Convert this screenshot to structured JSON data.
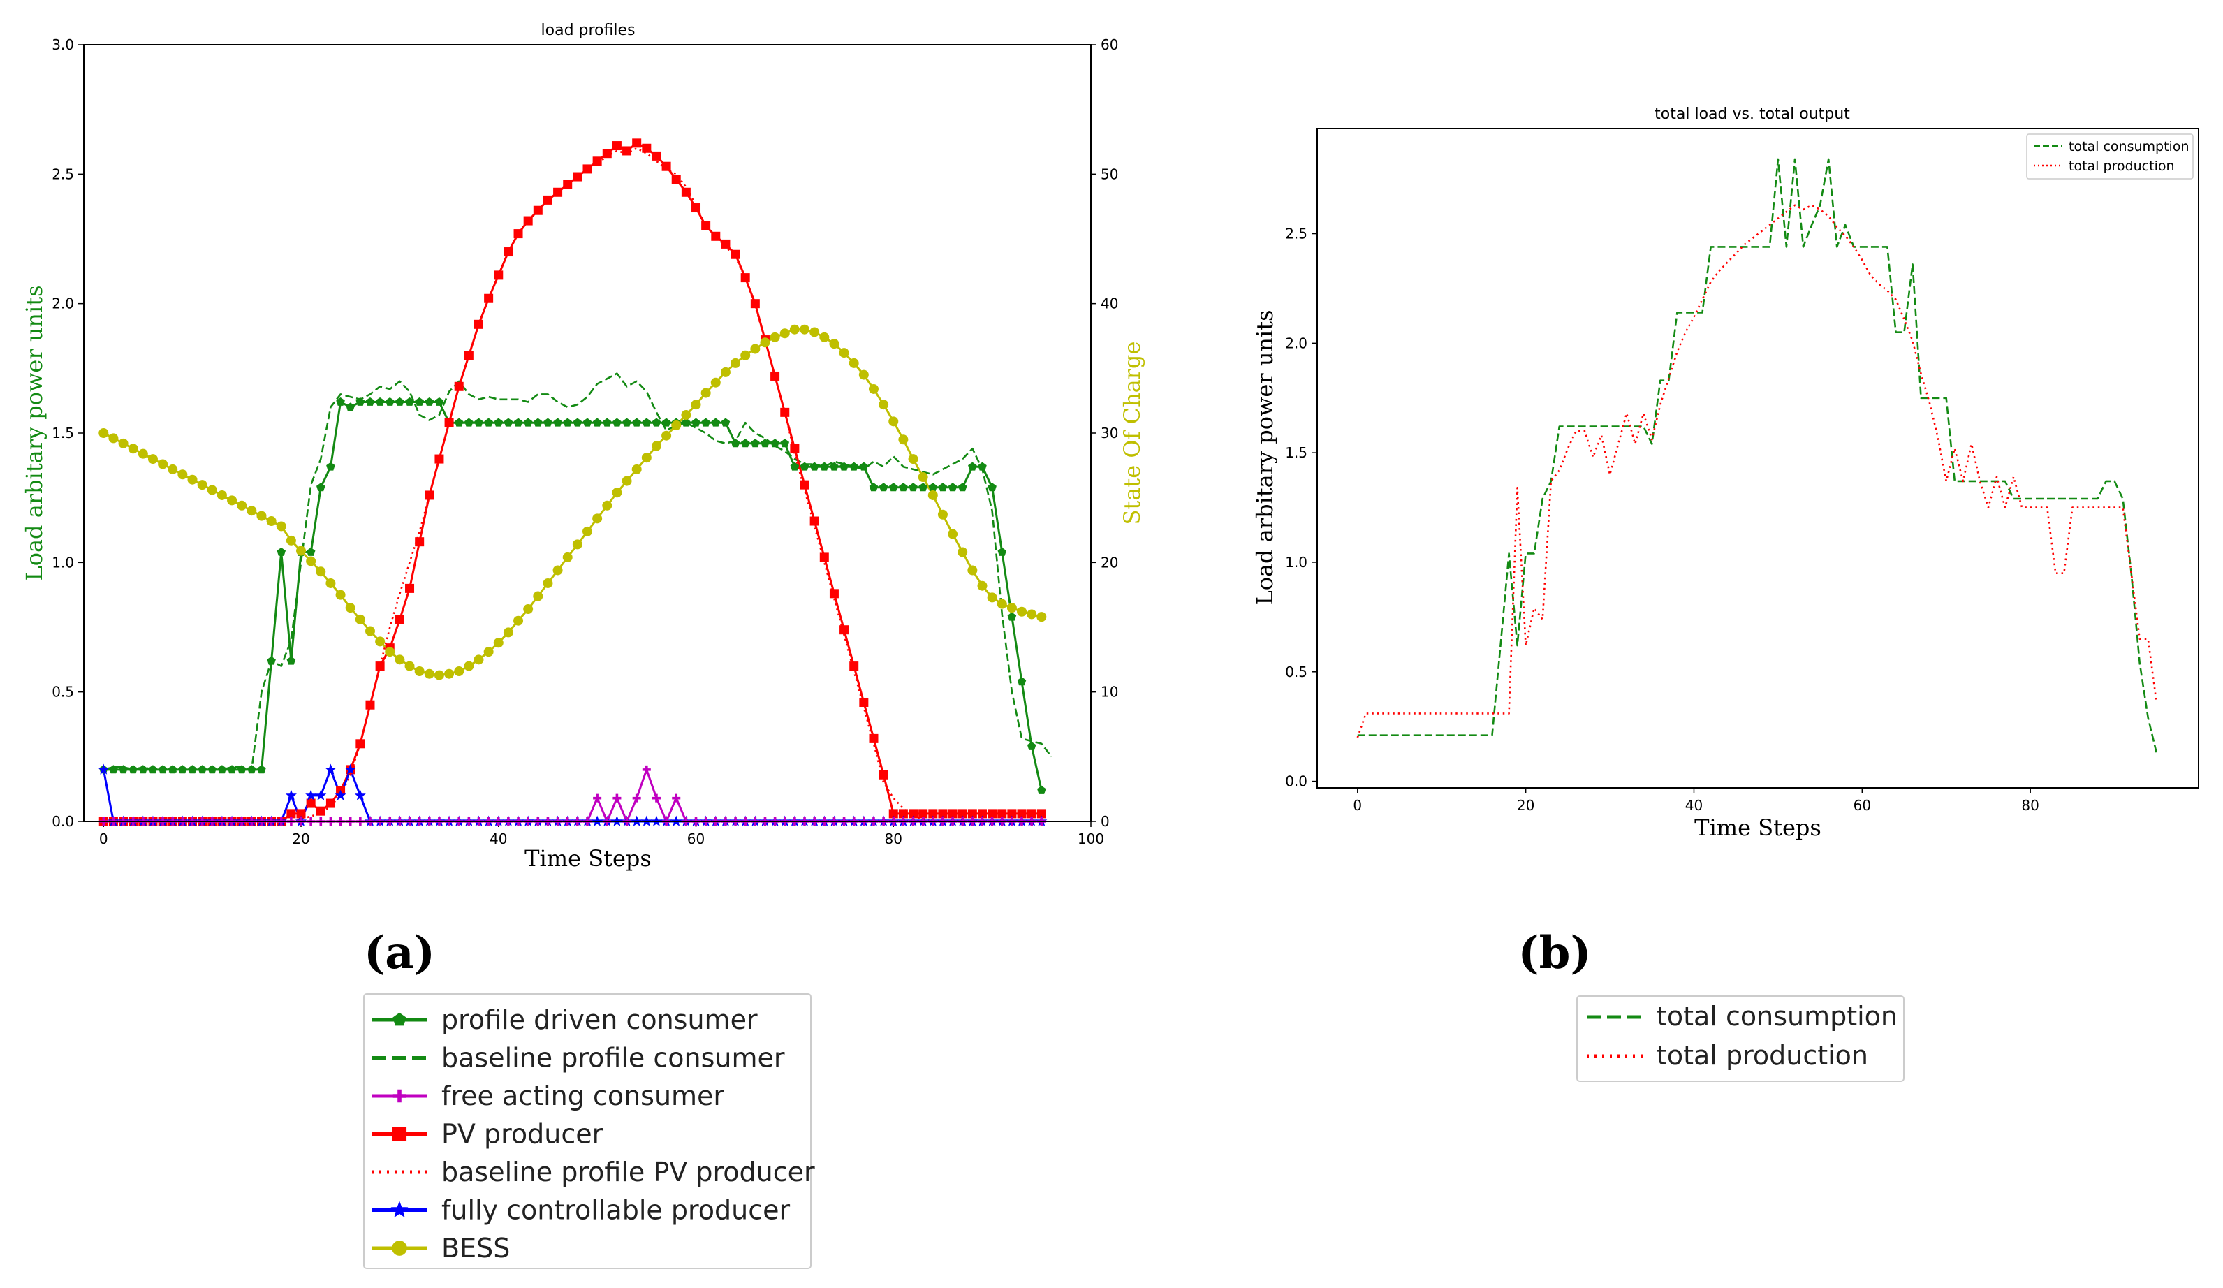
{
  "panel_labels": {
    "a": "(a)",
    "b": "(b)"
  },
  "chart_data": [
    {
      "id": "a",
      "type": "line",
      "title": "load profiles",
      "xlabel": "Time Steps",
      "ylabel": "Load arbitary power units",
      "y2label": "State Of Charge",
      "xlim": [
        -2,
        100
      ],
      "ylim": [
        0,
        3.0
      ],
      "y2lim": [
        0,
        60
      ],
      "xticks": [
        0,
        20,
        40,
        60,
        80,
        100
      ],
      "yticks": [
        0.0,
        0.5,
        1.0,
        1.5,
        2.0,
        2.5,
        3.0
      ],
      "ytick_labels": [
        "0.0",
        "0.5",
        "1.0",
        "1.5",
        "2.0",
        "2.5",
        "3.0"
      ],
      "y2ticks": [
        0,
        10,
        20,
        30,
        40,
        50,
        60
      ],
      "colors": {
        "ylabel": "#138a13",
        "y2label": "#bfbf00"
      },
      "legend_position": "below",
      "series": [
        {
          "name": "profile driven consumer",
          "axis": "left",
          "color": "#138a13",
          "linestyle": "solid",
          "marker": "pentagon",
          "values": [
            0.2,
            0.2,
            0.2,
            0.2,
            0.2,
            0.2,
            0.2,
            0.2,
            0.2,
            0.2,
            0.2,
            0.2,
            0.2,
            0.2,
            0.2,
            0.2,
            0.2,
            0.62,
            1.04,
            0.62,
            1.04,
            1.04,
            1.29,
            1.37,
            1.62,
            1.6,
            1.62,
            1.62,
            1.62,
            1.62,
            1.62,
            1.62,
            1.62,
            1.62,
            1.62,
            1.54,
            1.54,
            1.54,
            1.54,
            1.54,
            1.54,
            1.54,
            1.54,
            1.54,
            1.54,
            1.54,
            1.54,
            1.54,
            1.54,
            1.54,
            1.54,
            1.54,
            1.54,
            1.54,
            1.54,
            1.54,
            1.54,
            1.54,
            1.54,
            1.54,
            1.54,
            1.54,
            1.54,
            1.54,
            1.46,
            1.46,
            1.46,
            1.46,
            1.46,
            1.46,
            1.37,
            1.37,
            1.37,
            1.37,
            1.37,
            1.37,
            1.37,
            1.37,
            1.29,
            1.29,
            1.29,
            1.29,
            1.29,
            1.29,
            1.29,
            1.29,
            1.29,
            1.29,
            1.37,
            1.37,
            1.29,
            1.04,
            0.79,
            0.54,
            0.29,
            0.12
          ]
        },
        {
          "name": "baseline profile consumer",
          "axis": "left",
          "color": "#138a13",
          "linestyle": "dashed",
          "marker": "none",
          "values": [
            0.2,
            0.21,
            0.21,
            0.2,
            0.21,
            0.2,
            0.2,
            0.19,
            0.2,
            0.2,
            0.2,
            0.2,
            0.2,
            0.21,
            0.21,
            0.2,
            0.5,
            0.62,
            0.6,
            0.7,
            1.0,
            1.3,
            1.4,
            1.6,
            1.65,
            1.64,
            1.63,
            1.65,
            1.68,
            1.67,
            1.7,
            1.66,
            1.57,
            1.55,
            1.57,
            1.66,
            1.7,
            1.65,
            1.63,
            1.64,
            1.63,
            1.63,
            1.63,
            1.62,
            1.65,
            1.65,
            1.62,
            1.6,
            1.61,
            1.64,
            1.69,
            1.71,
            1.73,
            1.68,
            1.7,
            1.66,
            1.58,
            1.51,
            1.53,
            1.54,
            1.52,
            1.5,
            1.47,
            1.46,
            1.47,
            1.54,
            1.5,
            1.48,
            1.45,
            1.43,
            1.4,
            1.38,
            1.38,
            1.37,
            1.39,
            1.38,
            1.37,
            1.36,
            1.39,
            1.37,
            1.41,
            1.37,
            1.36,
            1.35,
            1.34,
            1.36,
            1.38,
            1.4,
            1.44,
            1.36,
            1.2,
            0.8,
            0.5,
            0.32,
            0.31,
            0.3,
            0.25
          ]
        },
        {
          "name": "free acting consumer",
          "axis": "left",
          "color": "#c000c0",
          "linestyle": "solid",
          "marker": "plus",
          "values": [
            0,
            0,
            0,
            0,
            0,
            0,
            0,
            0,
            0,
            0,
            0,
            0,
            0,
            0,
            0,
            0,
            0,
            0,
            0,
            0,
            0,
            0,
            0,
            0,
            0,
            0,
            0,
            0,
            0,
            0,
            0,
            0,
            0,
            0,
            0,
            0,
            0,
            0,
            0,
            0,
            0,
            0,
            0,
            0,
            0,
            0,
            0,
            0,
            0,
            0,
            0.09,
            0,
            0.09,
            0,
            0.09,
            0.2,
            0.09,
            0,
            0.09,
            0,
            0,
            0,
            0,
            0,
            0,
            0,
            0,
            0,
            0,
            0,
            0,
            0,
            0,
            0,
            0,
            0,
            0,
            0,
            0,
            0,
            0,
            0,
            0,
            0,
            0,
            0,
            0,
            0,
            0,
            0,
            0,
            0,
            0,
            0,
            0,
            0
          ]
        },
        {
          "name": "PV producer",
          "axis": "left",
          "color": "#ff0000",
          "linestyle": "solid",
          "marker": "square",
          "values": [
            0,
            0,
            0,
            0,
            0,
            0,
            0,
            0,
            0,
            0,
            0,
            0,
            0,
            0,
            0,
            0,
            0,
            0,
            0,
            0.03,
            0.03,
            0.07,
            0.04,
            0.07,
            0.12,
            0.2,
            0.3,
            0.45,
            0.6,
            0.67,
            0.78,
            0.9,
            1.08,
            1.26,
            1.4,
            1.54,
            1.68,
            1.8,
            1.92,
            2.02,
            2.11,
            2.2,
            2.27,
            2.32,
            2.36,
            2.4,
            2.43,
            2.46,
            2.49,
            2.52,
            2.55,
            2.58,
            2.61,
            2.59,
            2.62,
            2.6,
            2.57,
            2.53,
            2.48,
            2.43,
            2.37,
            2.3,
            2.26,
            2.23,
            2.19,
            2.1,
            2.0,
            1.86,
            1.72,
            1.58,
            1.44,
            1.3,
            1.16,
            1.02,
            0.88,
            0.74,
            0.6,
            0.46,
            0.32,
            0.18,
            0.03,
            0.03,
            0.03,
            0.03,
            0.03,
            0.03,
            0.03,
            0.03,
            0.03,
            0.03,
            0.03,
            0.03,
            0.03,
            0.03,
            0.03,
            0.03
          ]
        },
        {
          "name": "baseline profile PV producer",
          "axis": "left",
          "color": "#ff0000",
          "linestyle": "dotted",
          "marker": "none",
          "values": [
            0,
            0,
            0,
            0,
            0,
            0,
            0,
            0,
            0,
            0,
            0,
            0,
            0,
            0,
            0,
            0,
            0,
            0,
            0,
            0,
            0.01,
            0.02,
            0.03,
            0.06,
            0.1,
            0.18,
            0.3,
            0.45,
            0.6,
            0.75,
            0.88,
            1.0,
            1.12,
            1.26,
            1.4,
            1.54,
            1.68,
            1.8,
            1.92,
            2.02,
            2.11,
            2.2,
            2.27,
            2.32,
            2.36,
            2.4,
            2.43,
            2.46,
            2.49,
            2.52,
            2.54,
            2.57,
            2.59,
            2.58,
            2.6,
            2.58,
            2.55,
            2.52,
            2.5,
            2.45,
            2.38,
            2.3,
            2.26,
            2.22,
            2.18,
            2.1,
            1.99,
            1.86,
            1.72,
            1.58,
            1.42,
            1.28,
            1.14,
            1.0,
            0.86,
            0.72,
            0.58,
            0.44,
            0.3,
            0.15,
            0.09,
            0.05,
            0.02,
            0.01,
            0,
            0,
            0,
            0,
            0,
            0,
            0,
            0,
            0,
            0,
            0,
            0
          ]
        },
        {
          "name": "fully controllable producer",
          "axis": "left",
          "color": "#0000ff",
          "linestyle": "solid",
          "marker": "star",
          "values": [
            0.2,
            0,
            0,
            0,
            0,
            0,
            0,
            0,
            0,
            0,
            0,
            0,
            0,
            0,
            0,
            0,
            0,
            0,
            0,
            0.1,
            0,
            0.1,
            0.1,
            0.2,
            0.1,
            0.2,
            0.1,
            0,
            0,
            0,
            0,
            0,
            0,
            0,
            0,
            0,
            0,
            0,
            0,
            0,
            0,
            0,
            0,
            0,
            0,
            0,
            0,
            0,
            0,
            0,
            0,
            0,
            0,
            0,
            0,
            0,
            0,
            0,
            0,
            0,
            0,
            0,
            0,
            0,
            0,
            0,
            0,
            0,
            0,
            0,
            0,
            0,
            0,
            0,
            0,
            0,
            0,
            0,
            0,
            0,
            0,
            0,
            0,
            0,
            0,
            0,
            0,
            0,
            0,
            0,
            0,
            0,
            0,
            0,
            0,
            0
          ]
        },
        {
          "name": "BESS",
          "axis": "right",
          "color": "#bfbf00",
          "linestyle": "solid",
          "marker": "circle",
          "values": [
            30.0,
            29.6,
            29.2,
            28.8,
            28.4,
            28.0,
            27.6,
            27.2,
            26.8,
            26.4,
            26.0,
            25.6,
            25.2,
            24.8,
            24.4,
            24.0,
            23.6,
            23.2,
            22.8,
            21.7,
            20.9,
            20.1,
            19.3,
            18.4,
            17.5,
            16.5,
            15.6,
            14.7,
            13.9,
            13.1,
            12.5,
            12.0,
            11.6,
            11.4,
            11.3,
            11.4,
            11.6,
            12.0,
            12.5,
            13.1,
            13.8,
            14.6,
            15.5,
            16.4,
            17.4,
            18.4,
            19.4,
            20.4,
            21.4,
            22.4,
            23.4,
            24.4,
            25.4,
            26.3,
            27.2,
            28.1,
            29.0,
            29.8,
            30.6,
            31.4,
            32.2,
            33.1,
            33.9,
            34.7,
            35.4,
            36.0,
            36.5,
            37.0,
            37.4,
            37.7,
            38.0,
            38.0,
            37.8,
            37.4,
            36.9,
            36.2,
            35.4,
            34.5,
            33.4,
            32.2,
            30.9,
            29.5,
            28.0,
            26.6,
            25.2,
            23.7,
            22.2,
            20.8,
            19.4,
            18.2,
            17.3,
            16.8,
            16.5,
            16.2,
            16.0,
            15.8
          ]
        }
      ]
    },
    {
      "id": "b",
      "type": "line",
      "title": "total load vs. total output",
      "xlabel": "Time Steps",
      "ylabel": "Load arbitary power units",
      "xlim": [
        -4.8,
        100
      ],
      "ylim": [
        -0.03,
        2.98
      ],
      "xticks": [
        0,
        20,
        40,
        60,
        80
      ],
      "yticks": [
        0.0,
        0.5,
        1.0,
        1.5,
        2.0,
        2.5
      ],
      "ytick_labels": [
        "0.0",
        "0.5",
        "1.0",
        "1.5",
        "2.0",
        "2.5"
      ],
      "legend_position": "top-right",
      "series": [
        {
          "name": "total consumption",
          "color": "#138a13",
          "linestyle": "dashed",
          "values": [
            0.21,
            0.21,
            0.21,
            0.21,
            0.21,
            0.21,
            0.21,
            0.21,
            0.21,
            0.21,
            0.21,
            0.21,
            0.21,
            0.21,
            0.21,
            0.21,
            0.21,
            0.62,
            1.04,
            0.62,
            1.04,
            1.04,
            1.29,
            1.37,
            1.62,
            1.62,
            1.62,
            1.62,
            1.62,
            1.62,
            1.62,
            1.62,
            1.62,
            1.62,
            1.62,
            1.54,
            1.83,
            1.83,
            2.14,
            2.14,
            2.14,
            2.14,
            2.44,
            2.44,
            2.44,
            2.44,
            2.44,
            2.44,
            2.44,
            2.44,
            2.84,
            2.44,
            2.84,
            2.44,
            2.54,
            2.63,
            2.84,
            2.44,
            2.54,
            2.44,
            2.44,
            2.44,
            2.44,
            2.44,
            2.05,
            2.05,
            2.36,
            1.75,
            1.75,
            1.75,
            1.75,
            1.37,
            1.37,
            1.37,
            1.37,
            1.37,
            1.37,
            1.37,
            1.29,
            1.29,
            1.29,
            1.29,
            1.29,
            1.29,
            1.29,
            1.29,
            1.29,
            1.29,
            1.29,
            1.37,
            1.37,
            1.29,
            0.95,
            0.54,
            0.29,
            0.13
          ]
        },
        {
          "name": "total production",
          "color": "#ff0000",
          "linestyle": "dotted",
          "values": [
            0.2,
            0.31,
            0.31,
            0.31,
            0.31,
            0.31,
            0.31,
            0.31,
            0.31,
            0.31,
            0.31,
            0.31,
            0.31,
            0.31,
            0.31,
            0.31,
            0.31,
            0.31,
            0.31,
            1.34,
            0.62,
            0.79,
            0.74,
            1.37,
            1.42,
            1.52,
            1.6,
            1.6,
            1.48,
            1.58,
            1.4,
            1.54,
            1.68,
            1.54,
            1.68,
            1.56,
            1.72,
            1.84,
            1.96,
            2.05,
            2.12,
            2.2,
            2.28,
            2.33,
            2.37,
            2.41,
            2.45,
            2.48,
            2.51,
            2.54,
            2.57,
            2.6,
            2.63,
            2.61,
            2.63,
            2.61,
            2.58,
            2.53,
            2.49,
            2.44,
            2.38,
            2.31,
            2.27,
            2.24,
            2.2,
            2.11,
            2.01,
            1.86,
            1.73,
            1.57,
            1.37,
            1.52,
            1.37,
            1.54,
            1.37,
            1.25,
            1.39,
            1.25,
            1.39,
            1.25,
            1.25,
            1.25,
            1.25,
            0.95,
            0.95,
            1.25,
            1.25,
            1.25,
            1.25,
            1.25,
            1.25,
            1.25,
            0.95,
            0.65,
            0.65,
            0.36
          ]
        }
      ]
    }
  ]
}
